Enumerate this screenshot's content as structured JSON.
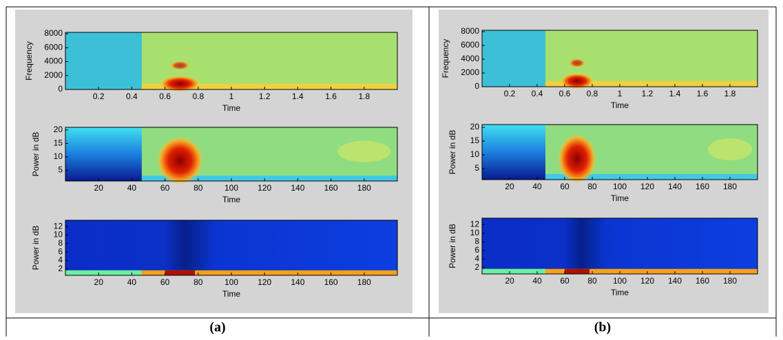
{
  "chart_data": [
    {
      "type": "spectrogram",
      "xlabel": "Time",
      "ylabel": "Frequency",
      "xlim": [
        0,
        2
      ],
      "ylim": [
        0,
        8200
      ],
      "xticks": [
        0.2,
        0.4,
        0.6,
        0.8,
        1,
        1.2,
        1.4,
        1.6,
        1.8
      ],
      "yticks": [
        0,
        2000,
        4000,
        6000,
        8000
      ]
    },
    {
      "type": "spectrogram",
      "xlabel": "Time",
      "ylabel": "Power in dB",
      "xlim": [
        0,
        200
      ],
      "ylim": [
        1,
        21
      ],
      "xticks": [
        20,
        40,
        60,
        80,
        100,
        120,
        140,
        160,
        180
      ],
      "yticks": [
        5,
        10,
        15,
        20
      ]
    },
    {
      "type": "spectrogram",
      "xlabel": "Time",
      "ylabel": "Power in dB",
      "xlim": [
        0,
        200
      ],
      "ylim": [
        0.5,
        13.5
      ],
      "xticks": [
        20,
        40,
        60,
        80,
        100,
        120,
        140,
        160,
        180
      ],
      "yticks": [
        2,
        4,
        6,
        8,
        10,
        12
      ]
    },
    {
      "type": "spectrogram",
      "xlabel": "Time",
      "ylabel": "Frequency",
      "xlim": [
        0,
        2
      ],
      "ylim": [
        0,
        8200
      ],
      "xticks": [
        0.2,
        0.4,
        0.6,
        0.8,
        1,
        1.2,
        1.4,
        1.6,
        1.8
      ],
      "yticks": [
        0,
        2000,
        4000,
        6000,
        8000
      ]
    },
    {
      "type": "spectrogram",
      "xlabel": "Time",
      "ylabel": "Power in dB",
      "xlim": [
        0,
        200
      ],
      "ylim": [
        1,
        21
      ],
      "xticks": [
        20,
        40,
        60,
        80,
        100,
        120,
        140,
        160,
        180
      ],
      "yticks": [
        5,
        10,
        15,
        20
      ]
    },
    {
      "type": "spectrogram",
      "xlabel": "Time",
      "ylabel": "Power in dB",
      "xlim": [
        0,
        200
      ],
      "ylim": [
        0.5,
        13.5
      ],
      "xticks": [
        20,
        40,
        60,
        80,
        100,
        120,
        140,
        160,
        180
      ],
      "yticks": [
        2,
        4,
        6,
        8,
        10,
        12
      ]
    }
  ],
  "captions": [
    "(a)",
    "(b)"
  ]
}
